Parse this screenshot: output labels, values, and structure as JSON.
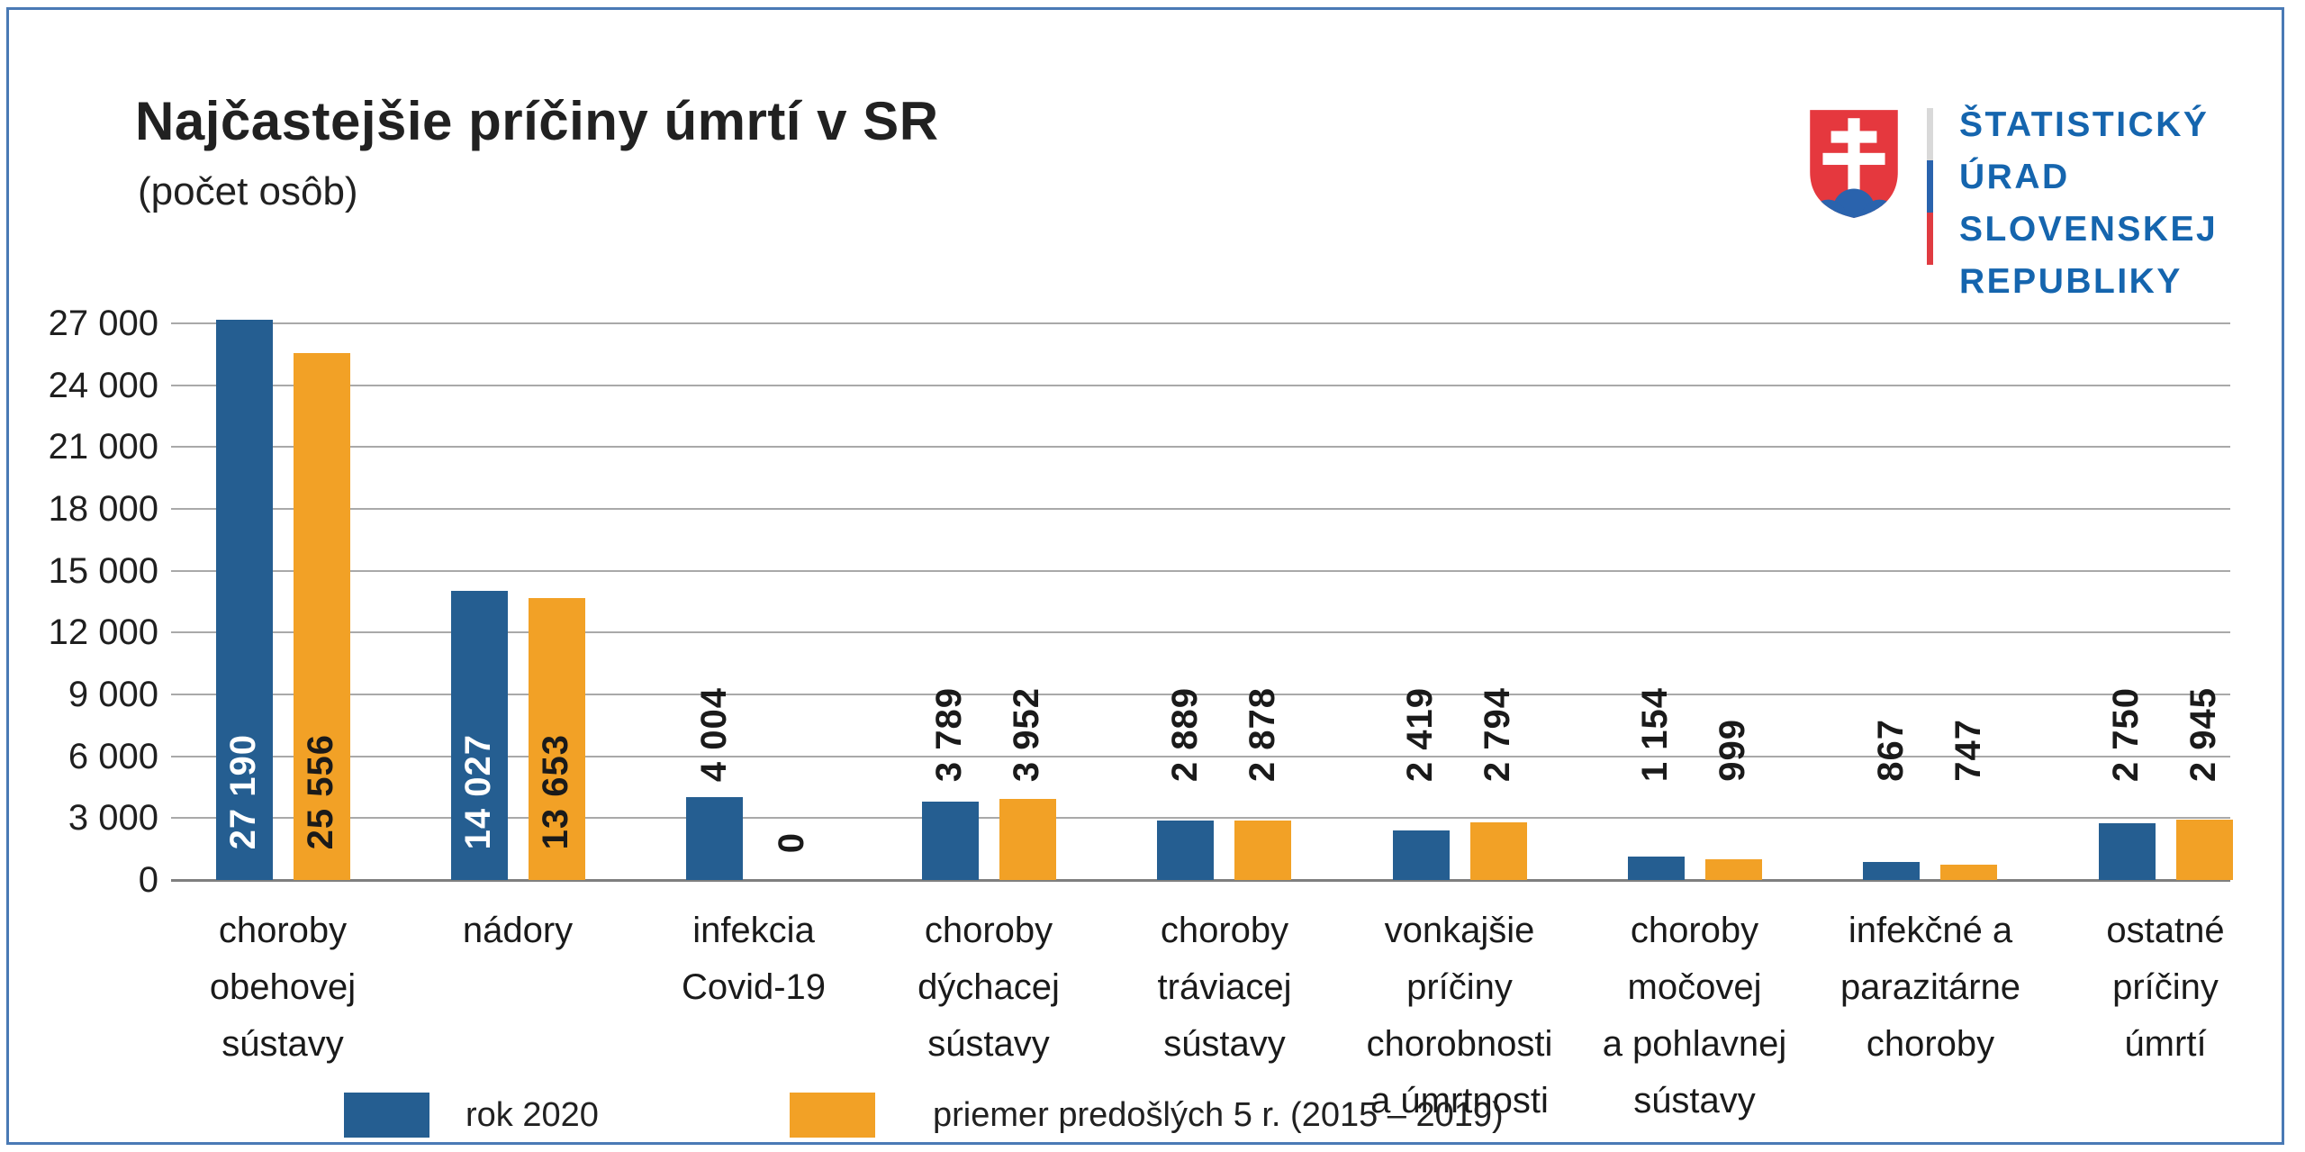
{
  "title": "Najčastejšie príčiny úmrtí v SR",
  "subtitle": "(počet osôb)",
  "logo": {
    "name": "Štatistický úrad Slovenskej republiky",
    "lines": [
      "ŠTATISTICKÝ",
      "ÚRAD",
      "SLOVENSKEJ",
      "REPUBLIKY"
    ],
    "text_color": "#1565ae",
    "shield_red": "#e5383e",
    "shield_blue": "#2a63ad",
    "tricolor": [
      "#d9d9d9",
      "#2a63ad",
      "#e03b41"
    ]
  },
  "colors": {
    "series_2020": "#255e91",
    "series_avg": "#f2a126",
    "frame_border": "#4a7ab5",
    "gridline": "#a9a9a9",
    "axis": "#7f7f7f",
    "text": "#1a1a1a"
  },
  "chart_data": {
    "type": "bar",
    "title": "Najčastejšie príčiny úmrtí v SR",
    "subtitle": "(počet osôb)",
    "categories": [
      "choroby obehovej sústavy",
      "nádory",
      "infekcia Covid-19",
      "choroby dýchacej sústavy",
      "choroby tráviacej sústavy",
      "vonkajšie príčiny chorobnosti a úmrtnosti",
      "choroby močovej a pohlavnej sústavy",
      "infekčné a parazitárne choroby",
      "ostatné príčiny úmrtí"
    ],
    "category_lines": [
      [
        "choroby",
        "obehovej",
        "sústavy"
      ],
      [
        "nádory"
      ],
      [
        "infekcia",
        "Covid-19"
      ],
      [
        "choroby",
        "dýchacej",
        "sústavy"
      ],
      [
        "choroby",
        "tráviacej",
        "sústavy"
      ],
      [
        "vonkajšie",
        "príčiny",
        "chorobnosti",
        "a úmrtnosti"
      ],
      [
        "choroby",
        "močovej",
        "a pohlavnej",
        "sústavy"
      ],
      [
        "infekčné a",
        "parazitárne",
        "choroby"
      ],
      [
        "ostatné",
        "príčiny",
        "úmrtí"
      ]
    ],
    "series": [
      {
        "name": "rok 2020",
        "color": "#255e91",
        "values": [
          27190,
          14027,
          4004,
          3789,
          2889,
          2419,
          1154,
          867,
          2750
        ],
        "labels": [
          "27 190",
          "14 027",
          "4 004",
          "3 789",
          "2 889",
          "2 419",
          "1 154",
          "867",
          "2 750"
        ]
      },
      {
        "name": "priemer predošlých 5 r. (2015 – 2019)",
        "color": "#f2a126",
        "values": [
          25556,
          13653,
          0,
          3952,
          2878,
          2794,
          999,
          747,
          2945
        ],
        "labels": [
          "25 556",
          "13 653",
          "0",
          "3 952",
          "2 878",
          "2 794",
          "999",
          "747",
          "2 945"
        ]
      }
    ],
    "xlabel": "",
    "ylabel": "",
    "ylim": [
      0,
      27000
    ],
    "ytick_step": 3000,
    "ytick_labels": [
      "0",
      "3 000",
      "6 000",
      "9 000",
      "12 000",
      "15 000",
      "18 000",
      "21 000",
      "24 000",
      "27 000"
    ],
    "grid": true,
    "legend_position": "bottom"
  },
  "legend": {
    "items": [
      {
        "label": "rok 2020",
        "color": "#255e91"
      },
      {
        "label": "priemer predošlých 5 r. (2015 – 2019)",
        "color": "#f2a126"
      }
    ]
  }
}
